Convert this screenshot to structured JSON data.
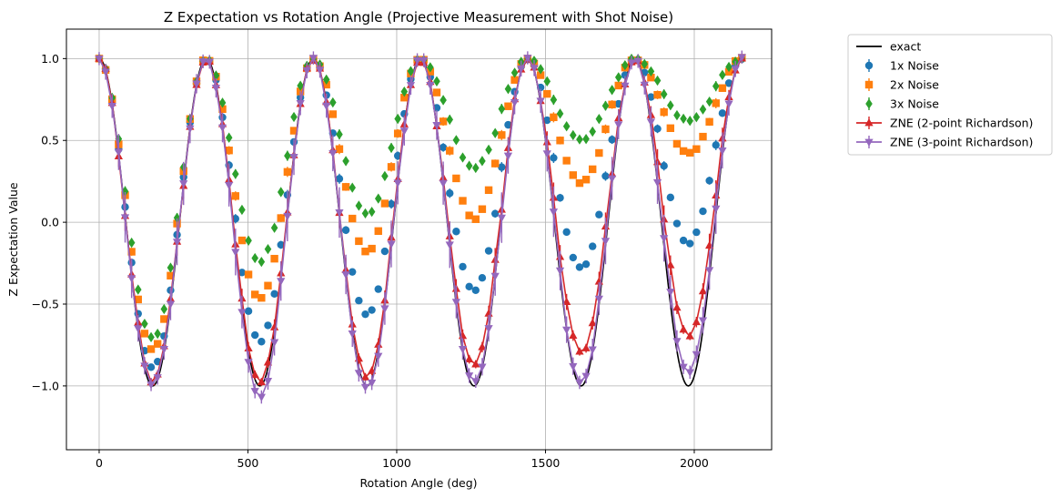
{
  "chart_data": {
    "type": "scatter",
    "title": "Z Expectation vs Rotation Angle (Projective Measurement with Shot Noise)",
    "xlabel": "Rotation Angle (deg)",
    "ylabel": "Z Expectation Value",
    "xlim": [
      -110,
      2260
    ],
    "ylim": [
      -1.39,
      1.18
    ],
    "xticks": [
      0,
      500,
      1000,
      1500,
      2000
    ],
    "xtick_labels": [
      "0",
      "500",
      "1000",
      "1500",
      "2000"
    ],
    "yticks": [
      -1.0,
      -0.5,
      0.0,
      0.5,
      1.0
    ],
    "ytick_labels": [
      "−1.0",
      "−0.5",
      "0.0",
      "0.5",
      "1.0"
    ],
    "grid": true,
    "legend_position": "outside-right-top",
    "x_range": [
      0,
      2160
    ],
    "points_per_series": 100,
    "exact": {
      "name": "exact",
      "color": "#000000",
      "formula": "cos(angle_deg * pi/180)",
      "x_range": [
        0,
        2160
      ]
    },
    "series": [
      {
        "name": "1x Noise",
        "color": "#1f77b4",
        "marker": "circle",
        "trough_minima": [
          -0.89,
          -0.73,
          -0.57,
          -0.42,
          -0.28,
          -0.13
        ],
        "error": 0.02
      },
      {
        "name": "2x Noise",
        "color": "#ff7f0e",
        "marker": "square",
        "trough_minima": [
          -0.78,
          -0.47,
          -0.18,
          0.02,
          0.24,
          0.42
        ],
        "error": 0.02
      },
      {
        "name": "3x Noise",
        "color": "#2ca02c",
        "marker": "diamond",
        "trough_minima": [
          -0.71,
          -0.24,
          0.05,
          0.33,
          0.5,
          0.62
        ],
        "error": 0.02
      },
      {
        "name": "ZNE (2-point Richardson)",
        "color": "#d62728",
        "marker": "triangle-up",
        "line": true,
        "trough_minima": [
          -0.97,
          -0.98,
          -0.95,
          -0.88,
          -0.8,
          -0.7
        ],
        "error": 0.06
      },
      {
        "name": "ZNE (3-point Richardson)",
        "color": "#9467bd",
        "marker": "triangle-down",
        "line": true,
        "trough_minima": [
          -1.0,
          -1.08,
          -1.02,
          -0.98,
          -0.98,
          -0.92
        ],
        "error": 0.1
      }
    ],
    "legend": [
      "exact",
      "1x Noise",
      "2x Noise",
      "3x Noise",
      "ZNE (2-point Richardson)",
      "ZNE (3-point Richardson)"
    ]
  }
}
